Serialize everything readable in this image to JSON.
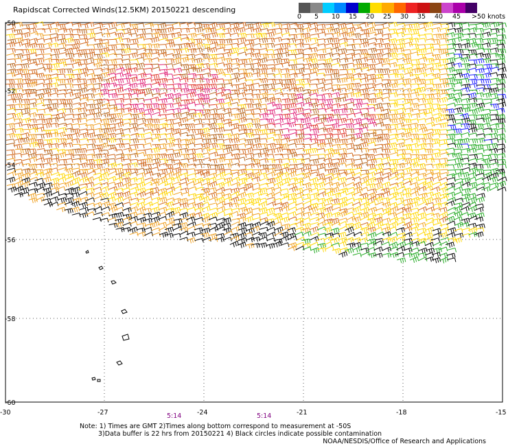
{
  "title": "Rapidscat Corrected Winds(12.5KM) 20150221 descending",
  "legend": {
    "labels": [
      "0",
      "5",
      "10",
      "15",
      "20",
      "25",
      "30",
      "35",
      "40",
      "45",
      ">50 knots"
    ],
    "colors": [
      "#555555",
      "#888888",
      "#00ccff",
      "#0088ff",
      "#0000cc",
      "#00aa00",
      "#ffdd00",
      "#ffaa00",
      "#ff6600",
      "#ee2222",
      "#cc1111",
      "#8b4513",
      "#cc44cc",
      "#aa00aa",
      "#440066"
    ]
  },
  "map": {
    "lat_labels": [
      "-50",
      "-52",
      "-54",
      "-56",
      "-58",
      "-60"
    ],
    "lon_labels": [
      "-30",
      "-27",
      "-24",
      "-21",
      "-18",
      "-15"
    ],
    "time_labels": [
      "5:14",
      "5:14"
    ]
  },
  "notes": {
    "line1": "Note: 1) Times are GMT 2)Times along bottom correspond to measurement at -50S",
    "line2": "3)Data buffer is 22 hrs from 20150221 4) Black circles indicate possible contamination"
  },
  "credit": "NOAA/NESDIS/Office of Research and Applications",
  "colors": {
    "black": "#000000",
    "green": "#22aa22",
    "blue": "#1a1aff",
    "yellow": "#ffd700",
    "orange": "#f0a020",
    "darkorange": "#d2691e",
    "brown": "#b5651d",
    "red": "#e03c31",
    "magenta": "#e0257a"
  }
}
